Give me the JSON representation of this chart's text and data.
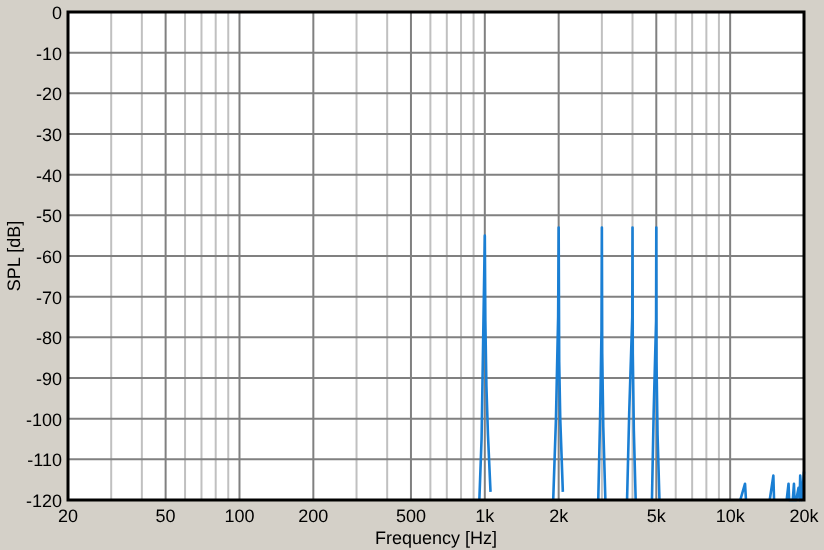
{
  "chart_data": {
    "type": "line",
    "xlabel": "Frequency [Hz]",
    "ylabel": "SPL [dB]",
    "log": "x",
    "xlim": [
      20,
      20000
    ],
    "ylim": [
      -120,
      0
    ],
    "xticks": [
      20,
      {
        "value": 30,
        "label": null
      },
      {
        "value": 40,
        "label": null
      },
      50,
      {
        "value": 60,
        "label": null
      },
      {
        "value": 70,
        "label": null
      },
      {
        "value": 80,
        "label": null
      },
      {
        "value": 90,
        "label": null
      },
      100,
      200,
      {
        "value": 300,
        "label": null
      },
      {
        "value": 400,
        "label": null
      },
      500,
      {
        "value": 600,
        "label": null
      },
      {
        "value": 700,
        "label": null
      },
      {
        "value": 800,
        "label": null
      },
      {
        "value": 900,
        "label": null
      },
      {
        "value": 1000,
        "label": "1k"
      },
      {
        "value": 2000,
        "label": "2k"
      },
      {
        "value": 3000,
        "label": null
      },
      {
        "value": 4000,
        "label": null
      },
      {
        "value": 5000,
        "label": "5k"
      },
      {
        "value": 6000,
        "label": null
      },
      {
        "value": 7000,
        "label": null
      },
      {
        "value": 8000,
        "label": null
      },
      {
        "value": 9000,
        "label": null
      },
      {
        "value": 10000,
        "label": "10k"
      },
      {
        "value": 20000,
        "label": "20k"
      }
    ],
    "yticks": [
      0,
      -10,
      -20,
      -30,
      -40,
      -50,
      -60,
      -70,
      -80,
      -90,
      -100,
      -110,
      -120
    ],
    "grid": true,
    "marker": "none",
    "line_style": "solid",
    "series": [
      {
        "color": "#1a7fd4",
        "x": [
          950,
          970,
          985,
          1000,
          1005,
          1015,
          1030,
          1055,
          1070,
          1900,
          1950,
          1990,
          2000,
          2010,
          2030,
          2080,
          2120,
          2300,
          2900,
          2950,
          2990,
          3000,
          3010,
          3040,
          3100,
          3200,
          3800,
          3880,
          3990,
          4000,
          4010,
          4050,
          4120,
          4200,
          4800,
          4880,
          4990,
          5000,
          5010,
          5060,
          5150,
          5250,
          11000,
          11500,
          11600,
          12000,
          14500,
          15000,
          15100,
          15500,
          17000,
          17300,
          17400,
          18000,
          18200,
          18300,
          18600,
          19000,
          19200,
          19300,
          19600,
          20000
        ],
        "values": [
          -120,
          -105,
          -80,
          -55,
          -76,
          -92,
          -104,
          -118,
          null,
          -120,
          -100,
          -75,
          -53,
          -86,
          -100,
          -118,
          null,
          null,
          -120,
          -100,
          -78,
          -53,
          -84,
          -102,
          -120,
          null,
          -120,
          -98,
          -75,
          -53,
          -84,
          -103,
          -120,
          null,
          -120,
          -98,
          -76,
          -53,
          -86,
          -104,
          -120,
          null,
          -120,
          -116,
          -120,
          null,
          -120,
          -114,
          -120,
          null,
          -120,
          -116,
          -120,
          -120,
          -116,
          -120,
          -120,
          -117,
          -120,
          -114,
          -120,
          -113
        ]
      }
    ]
  }
}
